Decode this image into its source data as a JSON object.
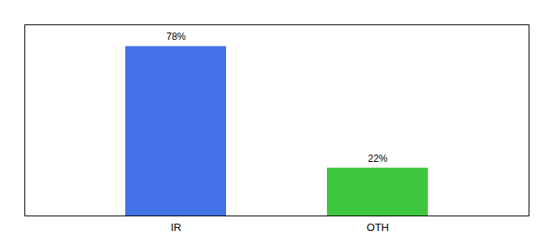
{
  "chart_data": {
    "type": "bar",
    "categories": [
      "IR",
      "OTH"
    ],
    "values": [
      78,
      22
    ],
    "value_labels": [
      "78%",
      "22%"
    ],
    "colors": [
      "#4472e8",
      "#3ec63e"
    ],
    "ylim": [
      0,
      88
    ],
    "grid": false,
    "data_labels": true,
    "tick_labels": "x"
  }
}
